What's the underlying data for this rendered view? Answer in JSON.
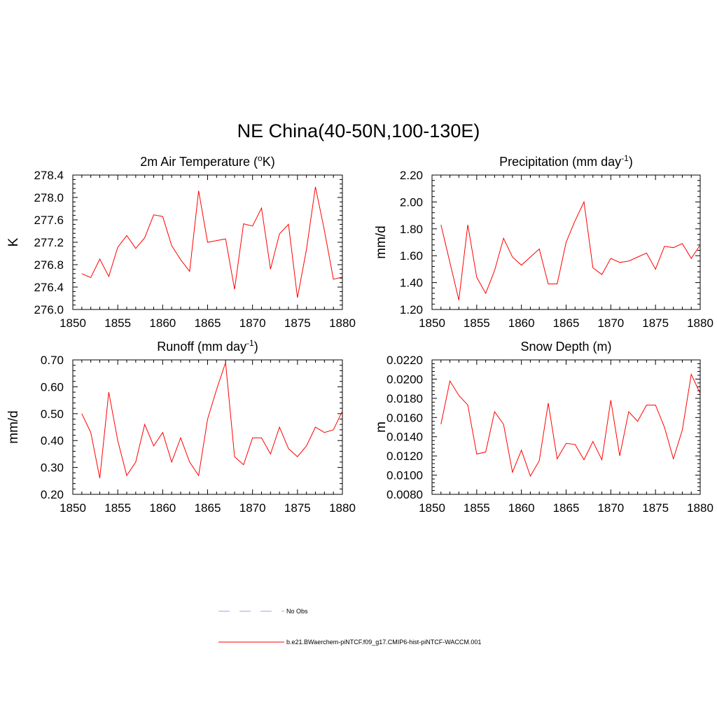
{
  "figure": {
    "title": "NE China(40-50N,100-130E)"
  },
  "legend": {
    "items": [
      {
        "label": "No Obs",
        "color": "#a0a0ee",
        "style": "dashed"
      },
      {
        "label": "b.e21.BWaerchem-piNTCF.f09_g17.CMIP6-hist-piNTCF-WACCM.001",
        "color": "#ff0000",
        "style": "solid"
      }
    ]
  },
  "chart_data": [
    {
      "type": "line",
      "title": "2m Air Temperature (",
      "title_sup": "o",
      "title_after": "K)",
      "ylabel": "K",
      "xlim": [
        1850,
        1880
      ],
      "ylim": [
        276.0,
        278.4
      ],
      "yticks": [
        "276.0",
        "276.4",
        "276.8",
        "277.2",
        "277.6",
        "278.0",
        "278.4"
      ],
      "xticks": [
        "1850",
        "1855",
        "1860",
        "1865",
        "1870",
        "1875",
        "1880"
      ],
      "x": [
        1851,
        1852,
        1853,
        1854,
        1855,
        1856,
        1857,
        1858,
        1859,
        1860,
        1861,
        1862,
        1863,
        1864,
        1865,
        1866,
        1867,
        1868,
        1869,
        1870,
        1871,
        1872,
        1873,
        1874,
        1875,
        1876,
        1877,
        1878,
        1879,
        1880
      ],
      "series": [
        {
          "color": "#ff0000",
          "values": [
            276.64,
            276.57,
            276.9,
            276.59,
            277.11,
            277.32,
            277.09,
            277.28,
            277.69,
            277.66,
            277.14,
            276.89,
            276.68,
            278.12,
            277.2,
            277.23,
            277.26,
            276.36,
            277.53,
            277.49,
            277.81,
            276.72,
            277.35,
            277.52,
            276.21,
            277.07,
            278.19,
            277.41,
            276.54,
            276.58
          ]
        }
      ]
    },
    {
      "type": "line",
      "title": "Precipitation (mm day",
      "title_sup": "-1",
      "title_after": ")",
      "ylabel": "mm/d",
      "xlim": [
        1850,
        1880
      ],
      "ylim": [
        1.2,
        2.2
      ],
      "yticks": [
        "1.20",
        "1.40",
        "1.60",
        "1.80",
        "2.00",
        "2.20"
      ],
      "xticks": [
        "1850",
        "1855",
        "1860",
        "1865",
        "1870",
        "1875",
        "1880"
      ],
      "x": [
        1851,
        1852,
        1853,
        1854,
        1855,
        1856,
        1857,
        1858,
        1859,
        1860,
        1861,
        1862,
        1863,
        1864,
        1865,
        1866,
        1867,
        1868,
        1869,
        1870,
        1871,
        1872,
        1873,
        1874,
        1875,
        1876,
        1877,
        1878,
        1879,
        1880
      ],
      "series": [
        {
          "color": "#ff0000",
          "values": [
            1.83,
            1.55,
            1.27,
            1.83,
            1.44,
            1.32,
            1.49,
            1.73,
            1.59,
            1.53,
            1.59,
            1.65,
            1.39,
            1.39,
            1.7,
            1.86,
            2.0,
            1.51,
            1.46,
            1.58,
            1.55,
            1.56,
            1.59,
            1.62,
            1.5,
            1.67,
            1.66,
            1.69,
            1.58,
            1.68
          ]
        }
      ]
    },
    {
      "type": "line",
      "title": "Runoff (mm day",
      "title_sup": "-1",
      "title_after": ")",
      "ylabel": "mm/d",
      "xlim": [
        1850,
        1880
      ],
      "ylim": [
        0.2,
        0.7
      ],
      "yticks": [
        "0.20",
        "0.30",
        "0.40",
        "0.50",
        "0.60",
        "0.70"
      ],
      "xticks": [
        "1850",
        "1855",
        "1860",
        "1865",
        "1870",
        "1875",
        "1880"
      ],
      "x": [
        1851,
        1852,
        1853,
        1854,
        1855,
        1856,
        1857,
        1858,
        1859,
        1860,
        1861,
        1862,
        1863,
        1864,
        1865,
        1866,
        1867,
        1868,
        1869,
        1870,
        1871,
        1872,
        1873,
        1874,
        1875,
        1876,
        1877,
        1878,
        1879,
        1880
      ],
      "series": [
        {
          "color": "#ff0000",
          "values": [
            0.5,
            0.43,
            0.26,
            0.58,
            0.4,
            0.27,
            0.32,
            0.46,
            0.38,
            0.43,
            0.32,
            0.41,
            0.32,
            0.27,
            0.48,
            0.59,
            0.69,
            0.34,
            0.31,
            0.41,
            0.41,
            0.35,
            0.45,
            0.37,
            0.34,
            0.38,
            0.45,
            0.43,
            0.44,
            0.51
          ]
        }
      ]
    },
    {
      "type": "line",
      "title": "Snow Depth (m)",
      "title_sup": "",
      "title_after": "",
      "ylabel": "m",
      "xlim": [
        1850,
        1880
      ],
      "ylim": [
        0.008,
        0.022
      ],
      "yticks": [
        "0.0080",
        "0.0100",
        "0.0120",
        "0.0140",
        "0.0160",
        "0.0180",
        "0.0200",
        "0.0220"
      ],
      "xticks": [
        "1850",
        "1855",
        "1860",
        "1865",
        "1870",
        "1875",
        "1880"
      ],
      "x": [
        1851,
        1852,
        1853,
        1854,
        1855,
        1856,
        1857,
        1858,
        1859,
        1860,
        1861,
        1862,
        1863,
        1864,
        1865,
        1866,
        1867,
        1868,
        1869,
        1870,
        1871,
        1872,
        1873,
        1874,
        1875,
        1876,
        1877,
        1878,
        1879,
        1880
      ],
      "series": [
        {
          "color": "#ff0000",
          "values": [
            0.0153,
            0.0198,
            0.0183,
            0.0173,
            0.0122,
            0.0124,
            0.0166,
            0.0153,
            0.0103,
            0.0126,
            0.0099,
            0.0115,
            0.0175,
            0.0117,
            0.0133,
            0.0132,
            0.0116,
            0.0135,
            0.0116,
            0.0178,
            0.012,
            0.0166,
            0.0156,
            0.0173,
            0.0173,
            0.015,
            0.0117,
            0.0147,
            0.0205,
            0.0185
          ]
        }
      ]
    }
  ]
}
